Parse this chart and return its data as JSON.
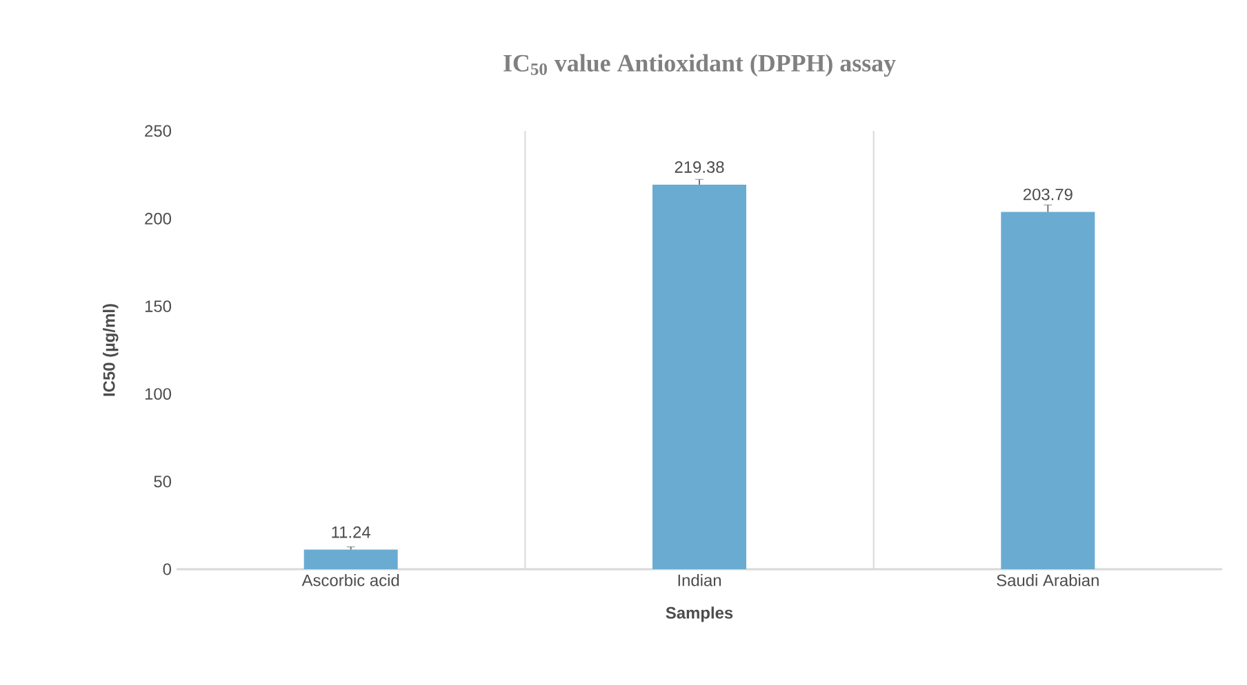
{
  "chart_data": {
    "type": "bar",
    "title": "IC$_{50}$ value Antioxidant (DPPH) assay",
    "xlabel": "Samples",
    "ylabel": "IC50 (µg/ml)",
    "categories": [
      "Ascorbic acid",
      "Indian",
      "Saudi Arabian"
    ],
    "values": [
      11.24,
      219.38,
      203.79
    ],
    "errors": [
      1.5,
      3,
      4
    ],
    "color": "#6aabd2",
    "ylim": [
      0,
      250
    ],
    "yticks": [
      0,
      50,
      100,
      150,
      200,
      250
    ],
    "data_labels": true,
    "grid": "x"
  }
}
